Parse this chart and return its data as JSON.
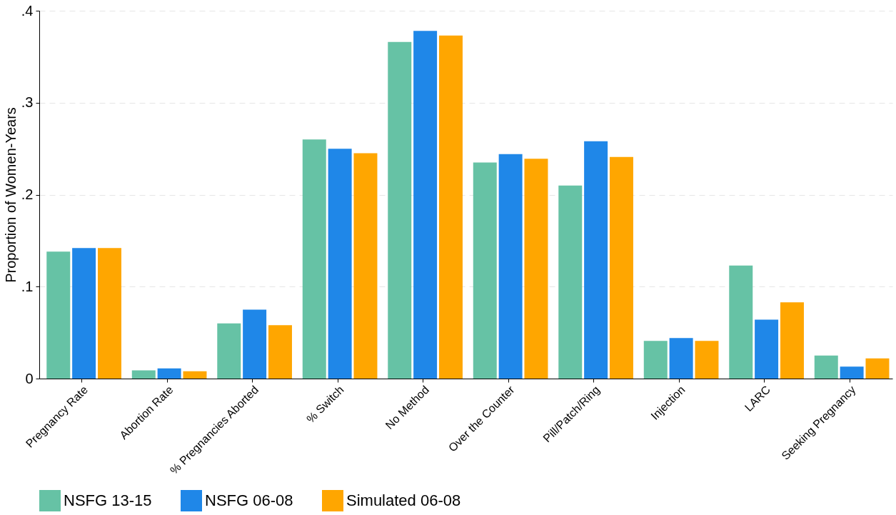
{
  "chart_data": {
    "type": "bar",
    "ylabel": "Proportion of Women-Years",
    "categories": [
      "Pregnancy Rate",
      "Abortion Rate",
      "% Pregnancies Aborted",
      "% Switch",
      "No Method",
      "Over the Counter",
      "Pill/Patch/Ring",
      "Injection",
      "LARC",
      "Seeking Pregnancy"
    ],
    "series": [
      {
        "name": "NSFG 13-15",
        "color": "#66c2a5",
        "values": [
          0.138,
          0.009,
          0.06,
          0.26,
          0.366,
          0.235,
          0.21,
          0.041,
          0.123,
          0.025
        ]
      },
      {
        "name": "NSFG 06-08",
        "color": "#1f87e8",
        "values": [
          0.142,
          0.011,
          0.075,
          0.25,
          0.378,
          0.244,
          0.258,
          0.044,
          0.064,
          0.013
        ]
      },
      {
        "name": "Simulated 06-08",
        "color": "#ffa600",
        "values": [
          0.142,
          0.008,
          0.058,
          0.245,
          0.373,
          0.239,
          0.241,
          0.041,
          0.083,
          0.022
        ]
      }
    ],
    "ylim": [
      0,
      0.4
    ],
    "yticks": [
      {
        "value": 0,
        "label": "0"
      },
      {
        "value": 0.1,
        "label": ".1"
      },
      {
        "value": 0.2,
        "label": ".2"
      },
      {
        "value": 0.3,
        "label": ".3"
      },
      {
        "value": 0.4,
        "label": ".4"
      }
    ],
    "grid": "y",
    "legend": "bottom"
  }
}
